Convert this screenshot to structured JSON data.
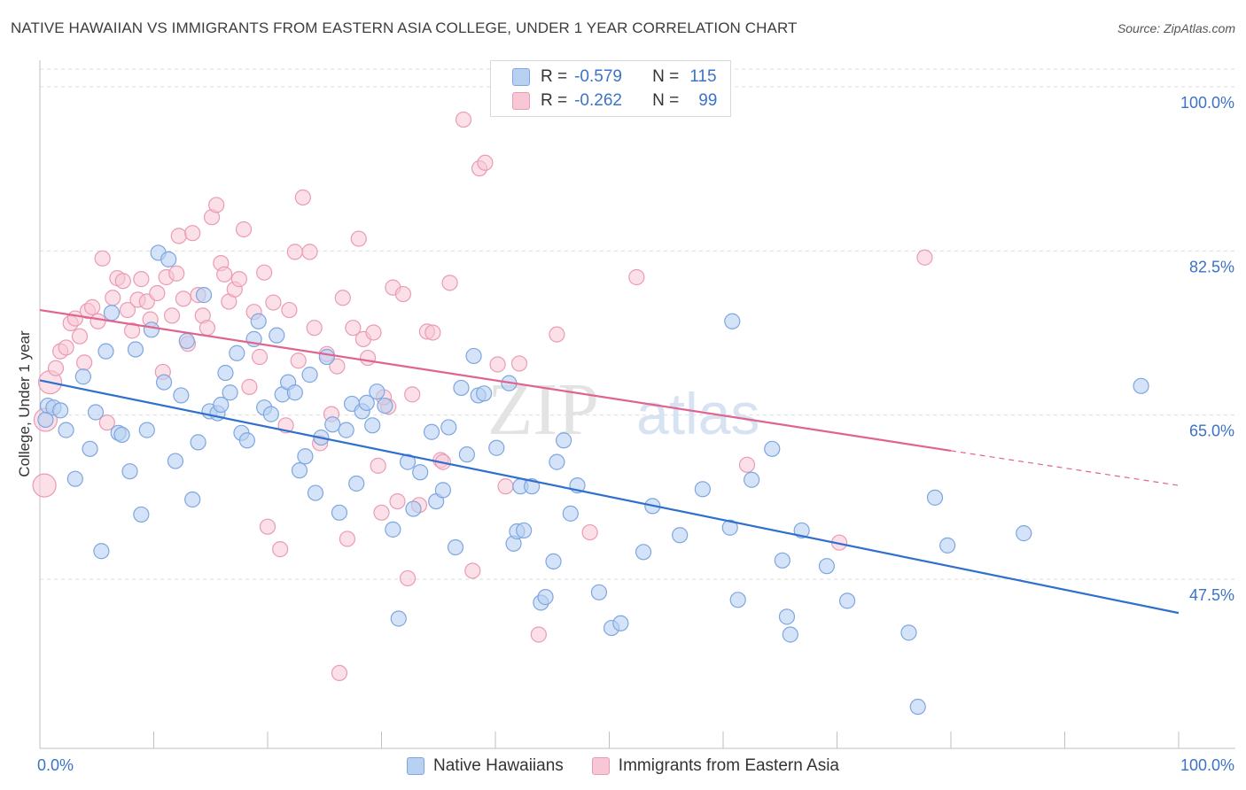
{
  "title": "NATIVE HAWAIIAN VS IMMIGRANTS FROM EASTERN ASIA COLLEGE, UNDER 1 YEAR CORRELATION CHART",
  "source": "Source: ZipAtlas.com",
  "watermark": {
    "zip": "ZIP",
    "atlas": "atlas"
  },
  "legend": {
    "rows": [
      {
        "r_label": "R =",
        "r_value": "-0.579",
        "n_label": "N =",
        "n_value": "115"
      },
      {
        "r_label": "R =",
        "r_value": "-0.262",
        "n_label": "N =",
        "n_value": "99"
      }
    ]
  },
  "colors": {
    "blue_fill": "#b8d0f2",
    "blue_stroke": "#7ea6e0",
    "blue_line": "#2f6fce",
    "pink_fill": "#f7c7d6",
    "pink_stroke": "#ea9bb5",
    "pink_line": "#e0648e",
    "grid": "#dddddd",
    "tick_label": "#3b73c8"
  },
  "chart_data": {
    "type": "scatter",
    "title": "NATIVE HAWAIIAN VS IMMIGRANTS FROM EASTERN ASIA COLLEGE, UNDER 1 YEAR CORRELATION CHART",
    "xlabel": "",
    "ylabel": "College, Under 1 year",
    "xlim": [
      0,
      100
    ],
    "ylim": [
      30,
      102
    ],
    "x_tick_labels": [
      "0.0%",
      "100.0%"
    ],
    "y_ticks": [
      47.5,
      65.0,
      82.5,
      100.0
    ],
    "y_tick_labels": [
      "47.5%",
      "65.0%",
      "82.5%",
      "100.0%"
    ],
    "legend_position": "top-center",
    "series": [
      {
        "name": "Native Hawaiians",
        "r": -0.579,
        "n": 115,
        "trend": {
          "x": [
            0,
            100
          ],
          "y": [
            68.7,
            43.9
          ]
        },
        "points": [
          [
            0.5,
            64.5
          ],
          [
            0.7,
            66.0
          ],
          [
            1.2,
            65.8
          ],
          [
            1.8,
            65.5
          ],
          [
            2.3,
            63.4
          ],
          [
            3.1,
            58.2
          ],
          [
            3.8,
            69.1
          ],
          [
            4.4,
            61.4
          ],
          [
            4.9,
            65.3
          ],
          [
            5.4,
            50.5
          ],
          [
            5.8,
            71.8
          ],
          [
            6.3,
            75.9
          ],
          [
            6.9,
            63.1
          ],
          [
            7.2,
            62.9
          ],
          [
            7.9,
            59.0
          ],
          [
            8.4,
            72.0
          ],
          [
            8.9,
            54.4
          ],
          [
            9.4,
            63.4
          ],
          [
            9.8,
            74.1
          ],
          [
            10.4,
            82.3
          ],
          [
            10.9,
            68.5
          ],
          [
            11.3,
            81.6
          ],
          [
            11.9,
            60.1
          ],
          [
            12.4,
            67.1
          ],
          [
            12.9,
            72.9
          ],
          [
            13.4,
            56.0
          ],
          [
            13.9,
            62.1
          ],
          [
            14.4,
            77.8
          ],
          [
            14.9,
            65.4
          ],
          [
            15.6,
            65.2
          ],
          [
            15.9,
            66.1
          ],
          [
            16.3,
            69.5
          ],
          [
            16.7,
            67.4
          ],
          [
            17.3,
            71.6
          ],
          [
            17.7,
            63.1
          ],
          [
            18.2,
            62.3
          ],
          [
            18.8,
            73.1
          ],
          [
            19.2,
            75.0
          ],
          [
            19.7,
            65.8
          ],
          [
            20.3,
            65.1
          ],
          [
            20.8,
            73.5
          ],
          [
            21.3,
            67.2
          ],
          [
            21.8,
            68.5
          ],
          [
            22.4,
            67.4
          ],
          [
            22.8,
            59.1
          ],
          [
            23.3,
            60.6
          ],
          [
            23.7,
            69.3
          ],
          [
            24.2,
            56.7
          ],
          [
            24.7,
            62.6
          ],
          [
            25.2,
            71.2
          ],
          [
            25.7,
            64.0
          ],
          [
            26.3,
            54.6
          ],
          [
            26.9,
            63.4
          ],
          [
            27.4,
            66.2
          ],
          [
            27.8,
            57.7
          ],
          [
            28.3,
            65.4
          ],
          [
            28.7,
            66.3
          ],
          [
            29.2,
            63.9
          ],
          [
            29.6,
            67.5
          ],
          [
            30.3,
            66.0
          ],
          [
            31.0,
            52.8
          ],
          [
            31.5,
            43.3
          ],
          [
            32.3,
            60.0
          ],
          [
            32.8,
            55.0
          ],
          [
            33.4,
            58.9
          ],
          [
            34.4,
            63.2
          ],
          [
            34.8,
            55.8
          ],
          [
            35.4,
            57.0
          ],
          [
            35.9,
            63.7
          ],
          [
            36.5,
            50.9
          ],
          [
            37.0,
            67.9
          ],
          [
            37.5,
            60.8
          ],
          [
            38.1,
            71.3
          ],
          [
            38.5,
            67.1
          ],
          [
            39.0,
            67.3
          ],
          [
            40.1,
            61.5
          ],
          [
            41.2,
            68.4
          ],
          [
            41.6,
            51.3
          ],
          [
            41.9,
            52.6
          ],
          [
            42.2,
            57.4
          ],
          [
            42.5,
            52.7
          ],
          [
            43.2,
            57.4
          ],
          [
            44.0,
            45.0
          ],
          [
            44.4,
            45.6
          ],
          [
            45.1,
            49.4
          ],
          [
            45.4,
            60.0
          ],
          [
            46.0,
            62.3
          ],
          [
            46.6,
            54.5
          ],
          [
            47.2,
            57.5
          ],
          [
            49.1,
            46.1
          ],
          [
            50.2,
            42.3
          ],
          [
            51.0,
            42.8
          ],
          [
            53.0,
            50.4
          ],
          [
            53.8,
            55.3
          ],
          [
            56.2,
            52.2
          ],
          [
            58.2,
            57.1
          ],
          [
            60.6,
            53.0
          ],
          [
            60.8,
            75.0
          ],
          [
            61.3,
            45.3
          ],
          [
            62.5,
            58.1
          ],
          [
            64.3,
            61.4
          ],
          [
            65.2,
            49.5
          ],
          [
            65.9,
            41.6
          ],
          [
            65.6,
            43.5
          ],
          [
            66.9,
            52.7
          ],
          [
            69.1,
            48.9
          ],
          [
            70.9,
            45.2
          ],
          [
            77.1,
            33.9
          ],
          [
            76.3,
            41.8
          ],
          [
            78.6,
            56.2
          ],
          [
            79.7,
            51.1
          ],
          [
            86.4,
            52.4
          ],
          [
            96.7,
            68.1
          ]
        ]
      },
      {
        "name": "Immigrants from Eastern Asia",
        "r": -0.262,
        "n": 99,
        "trend": {
          "x": [
            0,
            80
          ],
          "y": [
            76.2,
            61.2
          ]
        },
        "trend_dashed": {
          "x": [
            80,
            100
          ],
          "y": [
            61.2,
            57.5
          ]
        },
        "points": [
          [
            0.4,
            57.5
          ],
          [
            0.5,
            64.5
          ],
          [
            0.9,
            68.5
          ],
          [
            1.4,
            70.0
          ],
          [
            1.8,
            71.8
          ],
          [
            2.3,
            72.2
          ],
          [
            2.7,
            74.8
          ],
          [
            3.1,
            75.3
          ],
          [
            3.5,
            73.4
          ],
          [
            3.9,
            70.6
          ],
          [
            4.2,
            76.1
          ],
          [
            4.6,
            76.5
          ],
          [
            5.1,
            75.0
          ],
          [
            5.5,
            81.7
          ],
          [
            5.9,
            64.2
          ],
          [
            6.4,
            77.5
          ],
          [
            6.8,
            79.6
          ],
          [
            7.3,
            79.3
          ],
          [
            7.7,
            76.2
          ],
          [
            8.1,
            74.0
          ],
          [
            8.6,
            77.3
          ],
          [
            8.9,
            79.5
          ],
          [
            9.4,
            77.1
          ],
          [
            9.7,
            75.2
          ],
          [
            10.3,
            78.0
          ],
          [
            10.8,
            69.6
          ],
          [
            11.1,
            79.7
          ],
          [
            11.6,
            75.6
          ],
          [
            12.0,
            80.1
          ],
          [
            12.2,
            84.1
          ],
          [
            12.6,
            77.4
          ],
          [
            13.0,
            72.6
          ],
          [
            13.4,
            84.4
          ],
          [
            13.9,
            77.8
          ],
          [
            14.3,
            75.6
          ],
          [
            14.7,
            74.3
          ],
          [
            15.1,
            86.1
          ],
          [
            15.5,
            87.4
          ],
          [
            15.9,
            81.2
          ],
          [
            16.2,
            80.0
          ],
          [
            16.6,
            77.1
          ],
          [
            17.1,
            78.4
          ],
          [
            17.5,
            79.5
          ],
          [
            17.9,
            84.8
          ],
          [
            18.4,
            68.0
          ],
          [
            18.8,
            76.0
          ],
          [
            19.3,
            71.2
          ],
          [
            19.7,
            80.2
          ],
          [
            20.0,
            53.1
          ],
          [
            20.5,
            77.0
          ],
          [
            21.1,
            50.7
          ],
          [
            21.6,
            63.9
          ],
          [
            21.9,
            76.2
          ],
          [
            22.4,
            82.4
          ],
          [
            22.7,
            70.8
          ],
          [
            23.1,
            88.2
          ],
          [
            23.7,
            82.4
          ],
          [
            24.1,
            74.3
          ],
          [
            24.6,
            62.0
          ],
          [
            25.2,
            71.5
          ],
          [
            25.6,
            65.1
          ],
          [
            26.1,
            70.2
          ],
          [
            26.6,
            77.5
          ],
          [
            27.0,
            51.8
          ],
          [
            27.5,
            74.3
          ],
          [
            28.0,
            83.8
          ],
          [
            28.4,
            73.1
          ],
          [
            28.8,
            71.1
          ],
          [
            29.3,
            73.8
          ],
          [
            29.7,
            59.6
          ],
          [
            30.0,
            54.6
          ],
          [
            30.6,
            65.9
          ],
          [
            31.0,
            78.6
          ],
          [
            31.4,
            55.8
          ],
          [
            31.9,
            77.9
          ],
          [
            32.3,
            47.6
          ],
          [
            32.7,
            67.2
          ],
          [
            33.3,
            55.4
          ],
          [
            34.0,
            73.9
          ],
          [
            34.5,
            73.8
          ],
          [
            35.2,
            60.2
          ],
          [
            36.0,
            79.1
          ],
          [
            37.2,
            96.5
          ],
          [
            38.0,
            48.4
          ],
          [
            38.6,
            91.3
          ],
          [
            39.1,
            91.9
          ],
          [
            40.2,
            70.4
          ],
          [
            40.9,
            57.4
          ],
          [
            42.1,
            70.5
          ],
          [
            43.8,
            41.6
          ],
          [
            45.4,
            73.6
          ],
          [
            48.3,
            52.5
          ],
          [
            52.4,
            79.7
          ],
          [
            62.1,
            59.7
          ],
          [
            70.2,
            51.4
          ],
          [
            77.7,
            81.8
          ],
          [
            35.4,
            60.0
          ],
          [
            30.2,
            66.9
          ],
          [
            26.3,
            37.5
          ]
        ]
      }
    ]
  }
}
